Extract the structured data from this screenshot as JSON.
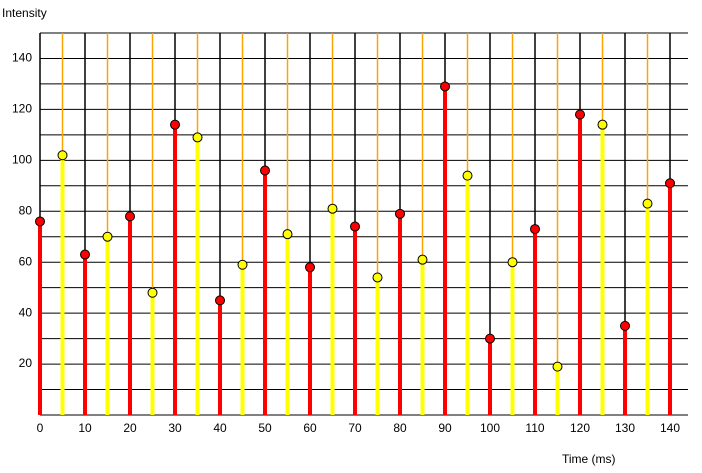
{
  "chart_data": {
    "type": "stem",
    "y_label": "Intensity",
    "x_label": "Time (ms)",
    "xlim": [
      0,
      144
    ],
    "ylim": [
      0,
      150
    ],
    "xticks": [
      0,
      10,
      20,
      30,
      40,
      50,
      60,
      70,
      80,
      90,
      100,
      110,
      120,
      130,
      140
    ],
    "yticks": [
      20,
      40,
      60,
      80,
      100,
      120,
      140
    ],
    "ygrid": [
      10,
      20,
      30,
      40,
      50,
      60,
      70,
      80,
      90,
      100,
      110,
      120,
      130,
      140,
      150
    ],
    "series": [
      {
        "color": "#ff0000",
        "grid_color": "#000000",
        "x": [
          0,
          10,
          20,
          30,
          40,
          50,
          60,
          70,
          80,
          90,
          100,
          110,
          120,
          130,
          140
        ],
        "values": [
          76,
          63,
          78,
          114,
          45,
          96,
          58,
          74,
          79,
          129,
          30,
          73,
          118,
          35,
          91
        ]
      },
      {
        "color": "#ffff00",
        "grid_color": "#ffa500",
        "x": [
          5,
          15,
          25,
          35,
          45,
          55,
          65,
          75,
          85,
          95,
          105,
          115,
          125,
          135
        ],
        "values": [
          102,
          70,
          48,
          109,
          59,
          71,
          81,
          54,
          61,
          94,
          60,
          19,
          114,
          83
        ]
      }
    ]
  }
}
